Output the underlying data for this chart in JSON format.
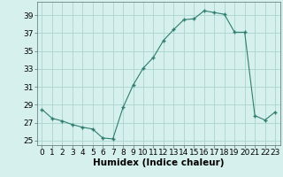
{
  "x": [
    0,
    1,
    2,
    3,
    4,
    5,
    6,
    7,
    8,
    9,
    10,
    11,
    12,
    13,
    14,
    15,
    16,
    17,
    18,
    19,
    20,
    21,
    22,
    23
  ],
  "y": [
    28.5,
    27.5,
    27.2,
    26.8,
    26.5,
    26.3,
    25.3,
    25.2,
    28.7,
    31.2,
    33.1,
    34.3,
    36.2,
    37.4,
    38.5,
    38.6,
    39.5,
    39.3,
    39.1,
    37.1,
    37.1,
    27.8,
    27.3,
    28.2
  ],
  "xlabel": "Humidex (Indice chaleur)",
  "ylim": [
    24.5,
    40.5
  ],
  "xlim": [
    -0.5,
    23.5
  ],
  "yticks": [
    25,
    27,
    29,
    31,
    33,
    35,
    37,
    39
  ],
  "xticks": [
    0,
    1,
    2,
    3,
    4,
    5,
    6,
    7,
    8,
    9,
    10,
    11,
    12,
    13,
    14,
    15,
    16,
    17,
    18,
    19,
    20,
    21,
    22,
    23
  ],
  "line_color": "#2e7d6e",
  "marker_color": "#2e7d6e",
  "bg_color": "#d6f0ee",
  "grid_color": "#aad4ce",
  "tick_label_fontsize": 6.5,
  "xlabel_fontsize": 7.5
}
